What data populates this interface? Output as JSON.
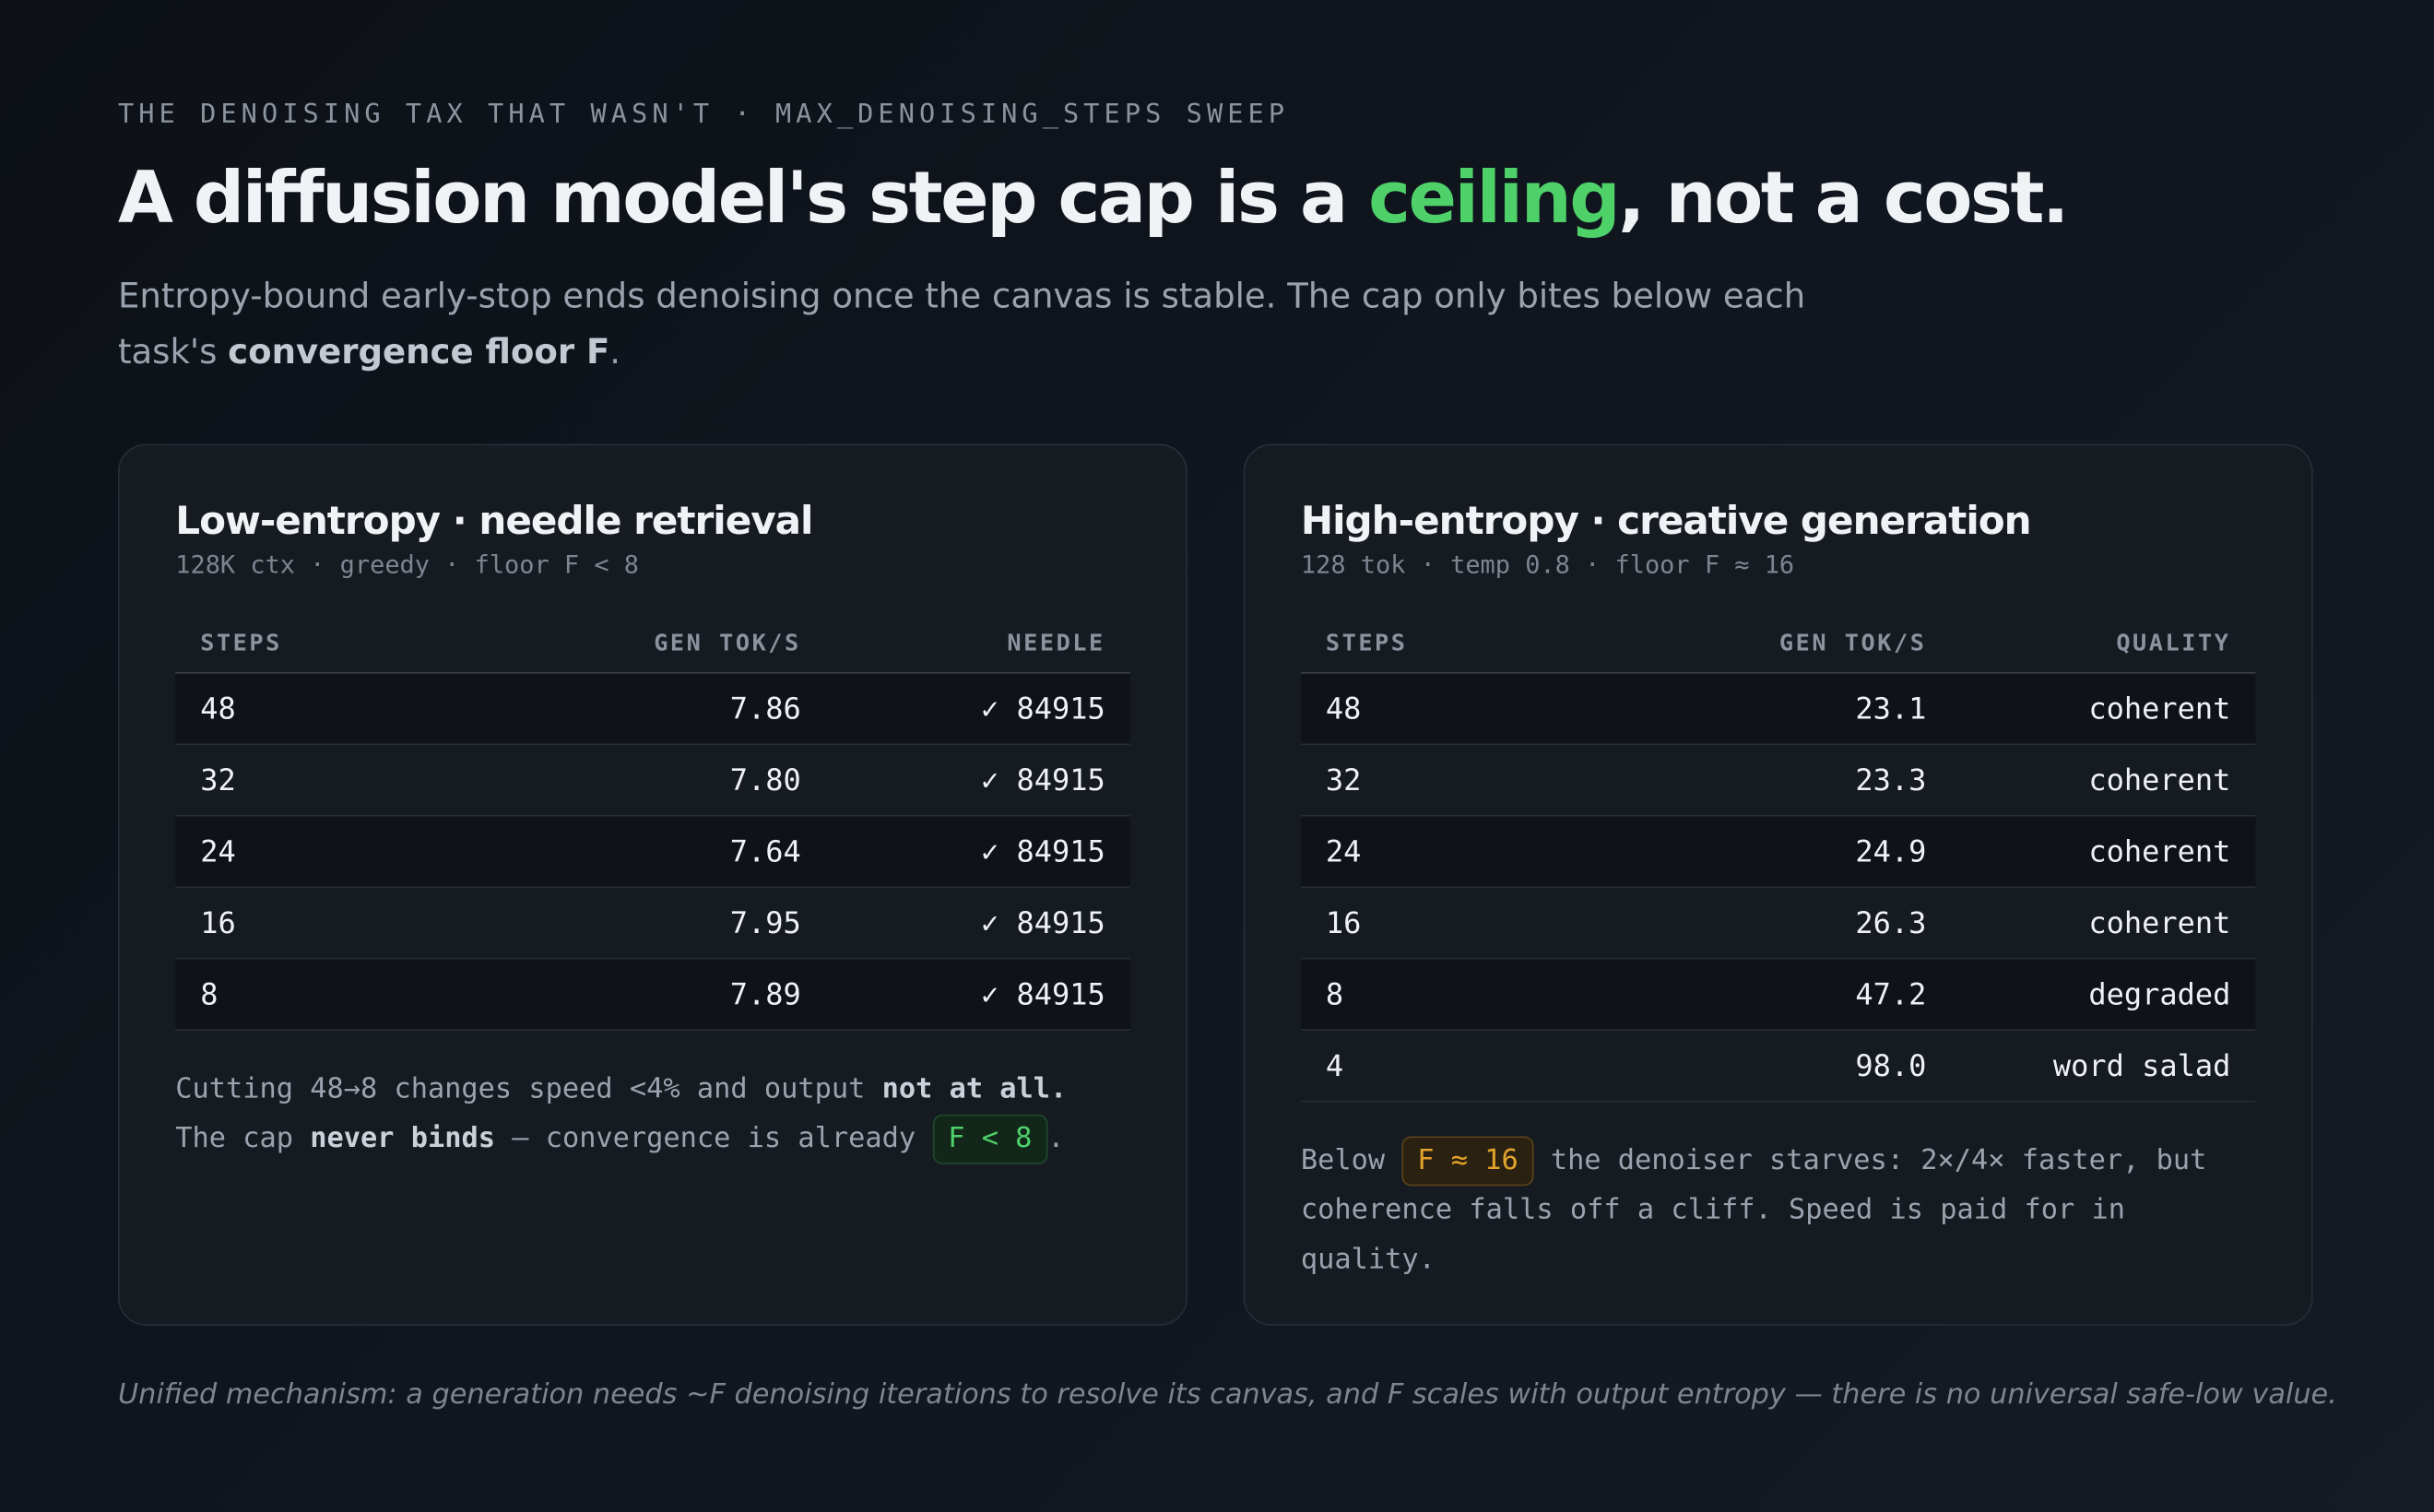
{
  "header": {
    "eyebrow": "THE DENOISING TAX THAT WASN'T · MAX_DENOISING_STEPS SWEEP",
    "title": {
      "before": "A diffusion model's step cap is a ",
      "highlight": "ceiling",
      "after": ", not a cost."
    },
    "subtitle": {
      "text": "Entropy-bound early-stop ends denoising once the canvas is stable. The cap only bites below each task's ",
      "strong": "convergence floor F",
      "end": "."
    }
  },
  "panels": [
    {
      "title": "Low-entropy · needle retrieval",
      "meta": "128K ctx · greedy · floor F < 8",
      "columns": [
        "STEPS",
        "GEN TOK/S",
        "NEEDLE"
      ],
      "rows": [
        [
          "48",
          "7.86",
          "✓ 84915"
        ],
        [
          "32",
          "7.80",
          "✓ 84915"
        ],
        [
          "24",
          "7.64",
          "✓ 84915"
        ],
        [
          "16",
          "7.95",
          "✓ 84915"
        ],
        [
          "8",
          "7.89",
          "✓ 84915"
        ]
      ],
      "note": [
        {
          "t": "Cutting 48→8 changes speed <4% and output "
        },
        {
          "t": "not at all.",
          "k": "b"
        },
        {
          "t": " The cap "
        },
        {
          "t": "never binds",
          "k": "b"
        },
        {
          "t": " — convergence is already "
        },
        {
          "t": "F < 8",
          "k": "green"
        },
        {
          "t": "."
        }
      ]
    },
    {
      "title": "High-entropy · creative generation",
      "meta": "128 tok · temp 0.8 · floor F ≈ 16",
      "columns": [
        "STEPS",
        "GEN TOK/S",
        "QUALITY"
      ],
      "rows": [
        [
          "48",
          "23.1",
          "coherent"
        ],
        [
          "32",
          "23.3",
          "coherent"
        ],
        [
          "24",
          "24.9",
          "coherent"
        ],
        [
          "16",
          "26.3",
          "coherent"
        ],
        [
          "8",
          "47.2",
          "degraded"
        ],
        [
          "4",
          "98.0",
          "word salad"
        ]
      ],
      "note": [
        {
          "t": "Below "
        },
        {
          "t": "F ≈ 16",
          "k": "amber"
        },
        {
          "t": " the denoiser starves: 2×/4× faster, but coherence falls off a cliff. Speed is paid for in quality."
        }
      ]
    }
  ],
  "footer": "Unified mechanism: a generation needs ~F denoising iterations to resolve its canvas, and F scales with output entropy — there is no universal safe-low value."
}
